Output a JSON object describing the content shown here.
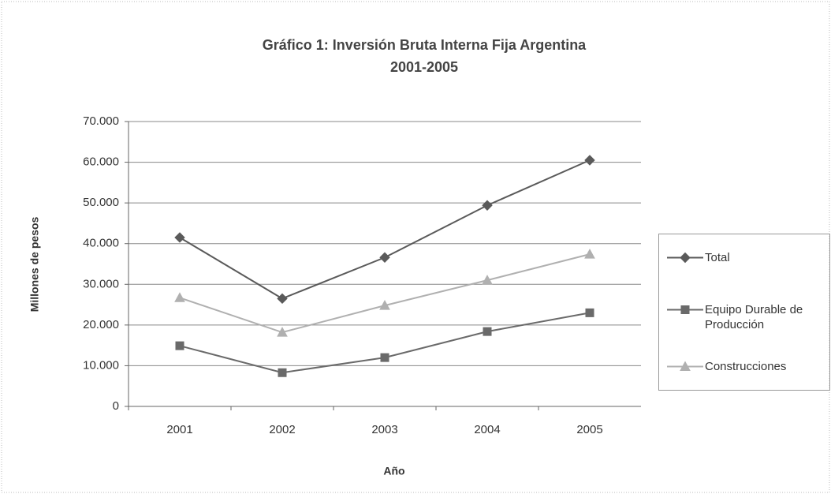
{
  "chart_data": {
    "type": "line",
    "title": [
      "Gráfico 1: Inversión Bruta Interna Fija Argentina",
      "2001-2005"
    ],
    "x_label": "Año",
    "y_label": "Millones de pesos",
    "categories": [
      "2001",
      "2002",
      "2003",
      "2004",
      "2005"
    ],
    "series": [
      {
        "name": "Total",
        "color": "#5a5a5a",
        "marker": "diamond",
        "values": [
          41500,
          26500,
          36600,
          49400,
          60500
        ]
      },
      {
        "name": "Equipo Durable de Producción",
        "color": "#6a6a6a",
        "marker": "square",
        "values": [
          14900,
          8300,
          12000,
          18400,
          23000
        ]
      },
      {
        "name": "Construcciones",
        "color": "#b0b0b0",
        "marker": "triangle",
        "values": [
          26700,
          18200,
          24800,
          31000,
          37400
        ]
      }
    ],
    "ylim": [
      0,
      70000
    ],
    "yticks": [
      0,
      {
        "value": 10000,
        "label": "10.000"
      },
      {
        "value": 20000,
        "label": "20.000"
      },
      {
        "value": 30000,
        "label": "30.000"
      },
      {
        "value": 40000,
        "label": "40.000"
      },
      {
        "value": 50000,
        "label": "50.000"
      },
      {
        "value": 60000,
        "label": "60.000"
      },
      {
        "value": 70000,
        "label": "70.000"
      }
    ],
    "grid": true,
    "legend": "right"
  }
}
